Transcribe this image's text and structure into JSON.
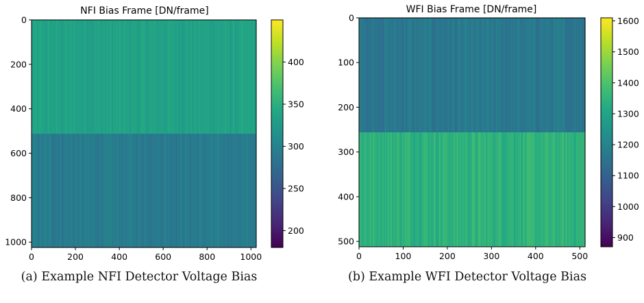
{
  "chart_data": [
    {
      "type": "heatmap",
      "title": "NFI Bias Frame [DN/frame]",
      "xlabel": "",
      "ylabel": "",
      "colormap": "viridis",
      "image_size": [
        1024,
        1024
      ],
      "xlim": [
        0,
        1024
      ],
      "ylim": [
        1024,
        0
      ],
      "x_ticks": [
        0,
        200,
        400,
        600,
        800,
        1000
      ],
      "y_ticks": [
        0,
        200,
        400,
        600,
        800,
        1000
      ],
      "colorbar_range": [
        180,
        450
      ],
      "colorbar_ticks": [
        200,
        250,
        300,
        350,
        400
      ],
      "regions": [
        {
          "rows": [
            0,
            512
          ],
          "mean_value": 335,
          "column_variation": 10
        },
        {
          "rows": [
            512,
            1024
          ],
          "mean_value": 292,
          "column_variation": 10
        }
      ],
      "caption": "(a) Example NFI Detector Voltage Bias"
    },
    {
      "type": "heatmap",
      "title": "WFI Bias Frame [DN/frame]",
      "xlabel": "",
      "ylabel": "",
      "colormap": "viridis",
      "image_size": [
        512,
        512
      ],
      "xlim": [
        0,
        512
      ],
      "ylim": [
        512,
        0
      ],
      "x_ticks": [
        0,
        100,
        200,
        300,
        400,
        500
      ],
      "y_ticks": [
        0,
        100,
        200,
        300,
        400,
        500
      ],
      "colorbar_range": [
        870,
        1610
      ],
      "colorbar_ticks": [
        900,
        1000,
        1100,
        1200,
        1300,
        1400,
        1500,
        1600
      ],
      "regions": [
        {
          "rows": [
            0,
            256
          ],
          "mean_value": 1165,
          "column_variation": 35
        },
        {
          "rows": [
            256,
            512
          ],
          "mean_value": 1345,
          "column_variation": 35
        }
      ],
      "caption": "(b) Example WFI Detector Voltage Bias"
    }
  ]
}
